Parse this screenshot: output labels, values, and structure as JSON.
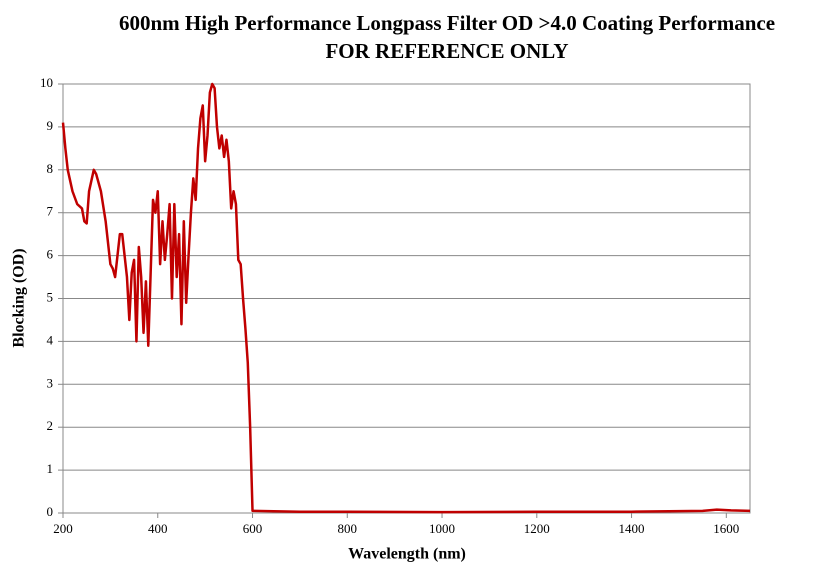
{
  "chart_data": {
    "type": "line",
    "title": "600nm High Performance Longpass Filter OD >4.0 Coating Performance",
    "subtitle": "FOR REFERENCE ONLY",
    "x_label": "Wavelength (nm)",
    "y_label": "Blocking (OD)",
    "x": [
      200,
      205,
      210,
      220,
      230,
      240,
      245,
      250,
      255,
      265,
      270,
      280,
      290,
      300,
      305,
      310,
      315,
      320,
      325,
      330,
      335,
      340,
      345,
      350,
      355,
      360,
      365,
      370,
      375,
      380,
      385,
      390,
      395,
      400,
      405,
      410,
      415,
      420,
      425,
      430,
      435,
      440,
      445,
      450,
      455,
      460,
      465,
      470,
      475,
      480,
      485,
      490,
      495,
      500,
      505,
      510,
      515,
      520,
      525,
      530,
      535,
      540,
      545,
      550,
      555,
      560,
      565,
      570,
      575,
      580,
      585,
      590,
      595,
      600,
      700,
      800,
      1000,
      1200,
      1400,
      1550,
      1580,
      1610,
      1650
    ],
    "series": [
      {
        "name": "Blocking (OD)",
        "color": "#c00000",
        "values": [
          9.1,
          8.5,
          8.0,
          7.5,
          7.2,
          7.1,
          6.8,
          6.75,
          7.5,
          8.0,
          7.9,
          7.5,
          6.8,
          5.8,
          5.7,
          5.5,
          6.0,
          6.5,
          6.5,
          6.0,
          5.5,
          4.5,
          5.6,
          5.9,
          4.0,
          6.2,
          5.5,
          4.2,
          5.4,
          3.9,
          5.6,
          7.3,
          7.0,
          7.5,
          5.8,
          6.8,
          5.9,
          6.5,
          7.2,
          5.0,
          7.2,
          5.5,
          6.5,
          4.4,
          6.8,
          4.9,
          6.0,
          7.0,
          7.8,
          7.3,
          8.5,
          9.2,
          9.5,
          8.2,
          8.8,
          9.8,
          10,
          9.9,
          9.0,
          8.5,
          8.8,
          8.3,
          8.7,
          8.2,
          7.1,
          7.5,
          7.2,
          5.9,
          5.8,
          5.0,
          4.3,
          3.5,
          2.0,
          0.05,
          0.03,
          0.03,
          0.02,
          0.03,
          0.03,
          0.05,
          0.08,
          0.06,
          0.05
        ]
      }
    ],
    "xlim": [
      200,
      1650
    ],
    "xticks": [
      200,
      400,
      600,
      800,
      1000,
      1200,
      1400,
      1600
    ],
    "ylim": [
      0,
      10
    ],
    "yticks": [
      0,
      1,
      2,
      3,
      4,
      5,
      6,
      7,
      8,
      9,
      10
    ],
    "grid": true
  }
}
